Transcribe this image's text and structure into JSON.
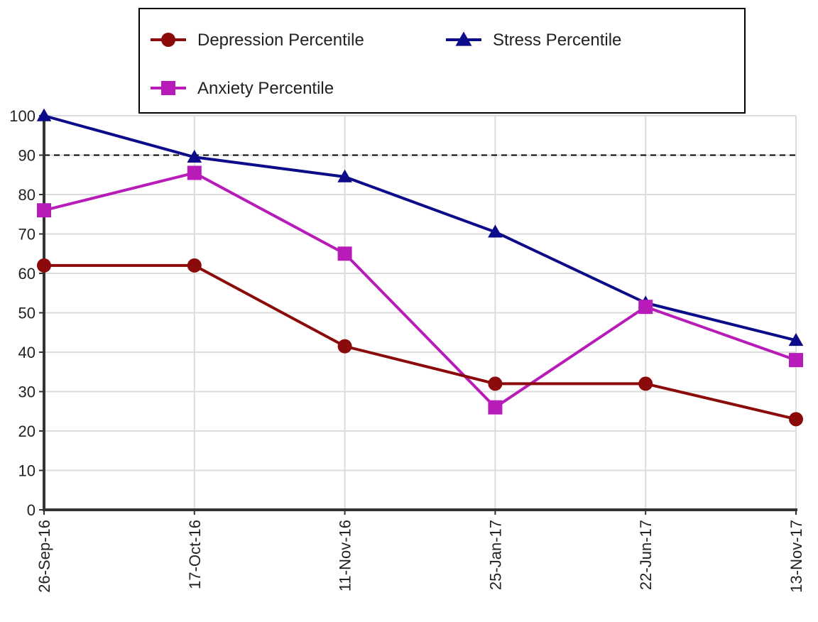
{
  "chart_data": {
    "type": "line",
    "title": "",
    "xlabel": "",
    "ylabel": "",
    "categories": [
      "26-Sep-16",
      "17-Oct-16",
      "11-Nov-16",
      "25-Jan-17",
      "22-Jun-17",
      "13-Nov-17"
    ],
    "ylim": [
      0,
      100
    ],
    "yticks": [
      0,
      10,
      20,
      30,
      40,
      50,
      60,
      70,
      80,
      90,
      100
    ],
    "reference_line": {
      "y": 90,
      "style": "dashed",
      "color": "#000000"
    },
    "grid": true,
    "legend": {
      "position": "top",
      "columns": 2
    },
    "series": [
      {
        "name": "Depression Percentile",
        "color": "#8b0a0a",
        "marker": "circle",
        "values": [
          62,
          62,
          41.5,
          32,
          32,
          23
        ]
      },
      {
        "name": "Stress Percentile",
        "color": "#0c0c8a",
        "marker": "triangle",
        "values": [
          100,
          89.5,
          84.5,
          70.5,
          52.5,
          43
        ]
      },
      {
        "name": "Anxiety Percentile",
        "color": "#b81cb8",
        "marker": "square",
        "values": [
          76,
          85.5,
          65,
          26,
          51.5,
          38
        ]
      }
    ]
  }
}
